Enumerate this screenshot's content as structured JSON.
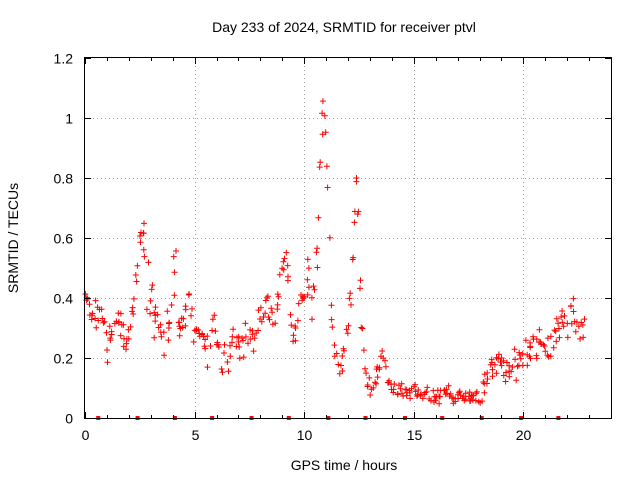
{
  "chart_data": {
    "type": "scatter",
    "title": "Day 233 of 2024, SRMTID for receiver ptvl",
    "xlabel": "GPS time / hours",
    "ylabel": "SRMTID / TECUs",
    "xlim": [
      0,
      24
    ],
    "ylim": [
      0,
      1.2
    ],
    "grid": true,
    "x_ticks": [
      0,
      5,
      10,
      15,
      20
    ],
    "y_ticks": [
      0,
      0.2,
      0.4,
      0.6,
      0.8,
      1,
      1.2
    ],
    "x_tick_labels": [
      "0",
      "5",
      "10",
      "15",
      "20"
    ],
    "y_tick_labels": [
      "0",
      "0.2",
      "0.4",
      "0.6",
      "0.8",
      "1",
      "1.2"
    ],
    "marker": "plus",
    "series_color": "#ff0000",
    "time_step_hours": 0.125,
    "envelope": {
      "hours": [
        0,
        0.1,
        0.4,
        0.7,
        1.0,
        1.3,
        1.6,
        1.9,
        2.2,
        2.5,
        2.6,
        2.8,
        3.0,
        3.3,
        3.6,
        3.9,
        4.1,
        4.3,
        4.5,
        4.7,
        4.9,
        5.3,
        5.6,
        5.9,
        6.2,
        6.5,
        6.8,
        7.1,
        7.4,
        7.7,
        8.0,
        8.3,
        8.6,
        9.0,
        9.2,
        9.4,
        9.6,
        9.9,
        10.2,
        10.4,
        10.6,
        10.8,
        10.95,
        11.1,
        11.3,
        11.6,
        11.9,
        12.2,
        12.4,
        12.6,
        12.8,
        13.0,
        13.3,
        13.6,
        14.0,
        14.4,
        14.8,
        15.2,
        15.6,
        16.0,
        16.4,
        16.8,
        17.2,
        17.6,
        18.0,
        18.4,
        18.8,
        19.2,
        19.6,
        20.0,
        20.4,
        20.8,
        21.2,
        21.6,
        22.0,
        22.4,
        22.8
      ],
      "center": [
        0.45,
        0.4,
        0.33,
        0.38,
        0.26,
        0.3,
        0.35,
        0.25,
        0.38,
        0.55,
        0.65,
        0.5,
        0.38,
        0.32,
        0.28,
        0.35,
        0.55,
        0.28,
        0.32,
        0.42,
        0.3,
        0.28,
        0.22,
        0.28,
        0.2,
        0.18,
        0.28,
        0.25,
        0.3,
        0.25,
        0.35,
        0.38,
        0.32,
        0.5,
        0.55,
        0.28,
        0.3,
        0.42,
        0.45,
        0.35,
        0.55,
        0.95,
        1.05,
        0.7,
        0.22,
        0.18,
        0.25,
        0.45,
        0.82,
        0.35,
        0.15,
        0.12,
        0.14,
        0.2,
        0.1,
        0.09,
        0.1,
        0.09,
        0.08,
        0.07,
        0.08,
        0.07,
        0.08,
        0.06,
        0.07,
        0.12,
        0.2,
        0.16,
        0.18,
        0.22,
        0.25,
        0.24,
        0.26,
        0.3,
        0.32,
        0.34,
        0.3
      ],
      "spread": [
        0.06,
        0.07,
        0.05,
        0.09,
        0.06,
        0.06,
        0.06,
        0.06,
        0.08,
        0.1,
        0.08,
        0.09,
        0.07,
        0.06,
        0.07,
        0.07,
        0.1,
        0.06,
        0.07,
        0.06,
        0.05,
        0.05,
        0.05,
        0.06,
        0.05,
        0.05,
        0.05,
        0.05,
        0.06,
        0.05,
        0.05,
        0.06,
        0.05,
        0.07,
        0.05,
        0.04,
        0.05,
        0.06,
        0.07,
        0.08,
        0.1,
        0.12,
        0.08,
        0.12,
        0.06,
        0.05,
        0.05,
        0.1,
        0.06,
        0.08,
        0.04,
        0.04,
        0.04,
        0.05,
        0.03,
        0.03,
        0.03,
        0.03,
        0.03,
        0.025,
        0.03,
        0.025,
        0.03,
        0.025,
        0.03,
        0.04,
        0.05,
        0.05,
        0.05,
        0.06,
        0.06,
        0.06,
        0.06,
        0.07,
        0.08,
        0.08,
        0.06
      ]
    },
    "baseline_markers_hours": [
      0.6,
      2.4,
      4.1,
      5.8,
      7.6,
      9.3,
      11.1,
      12.8,
      14.6,
      16.3,
      18.1,
      19.9,
      21.6
    ]
  }
}
